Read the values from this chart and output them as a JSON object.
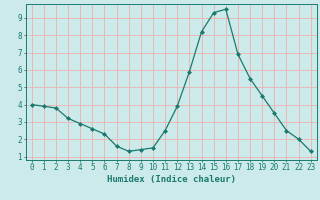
{
  "x": [
    0,
    1,
    2,
    3,
    4,
    5,
    6,
    7,
    8,
    9,
    10,
    11,
    12,
    13,
    14,
    15,
    16,
    17,
    18,
    19,
    20,
    21,
    22,
    23
  ],
  "y": [
    4.0,
    3.9,
    3.8,
    3.2,
    2.9,
    2.6,
    2.3,
    1.6,
    1.3,
    1.4,
    1.5,
    2.5,
    3.9,
    5.9,
    8.2,
    9.3,
    9.5,
    6.9,
    5.5,
    4.5,
    3.5,
    2.5,
    2.0,
    1.3
  ],
  "line_color": "#1a7a6e",
  "marker": "D",
  "marker_size": 2.0,
  "bg_color": "#cceaea",
  "grid_color": "#e8b8b8",
  "axis_color": "#1a7a6e",
  "xlabel": "Humidex (Indice chaleur)",
  "xlim": [
    -0.5,
    23.5
  ],
  "ylim": [
    0.8,
    9.8
  ],
  "yticks": [
    1,
    2,
    3,
    4,
    5,
    6,
    7,
    8,
    9
  ],
  "xticks": [
    0,
    1,
    2,
    3,
    4,
    5,
    6,
    7,
    8,
    9,
    10,
    11,
    12,
    13,
    14,
    15,
    16,
    17,
    18,
    19,
    20,
    21,
    22,
    23
  ],
  "xlabel_fontsize": 6.5,
  "tick_fontsize": 5.5
}
